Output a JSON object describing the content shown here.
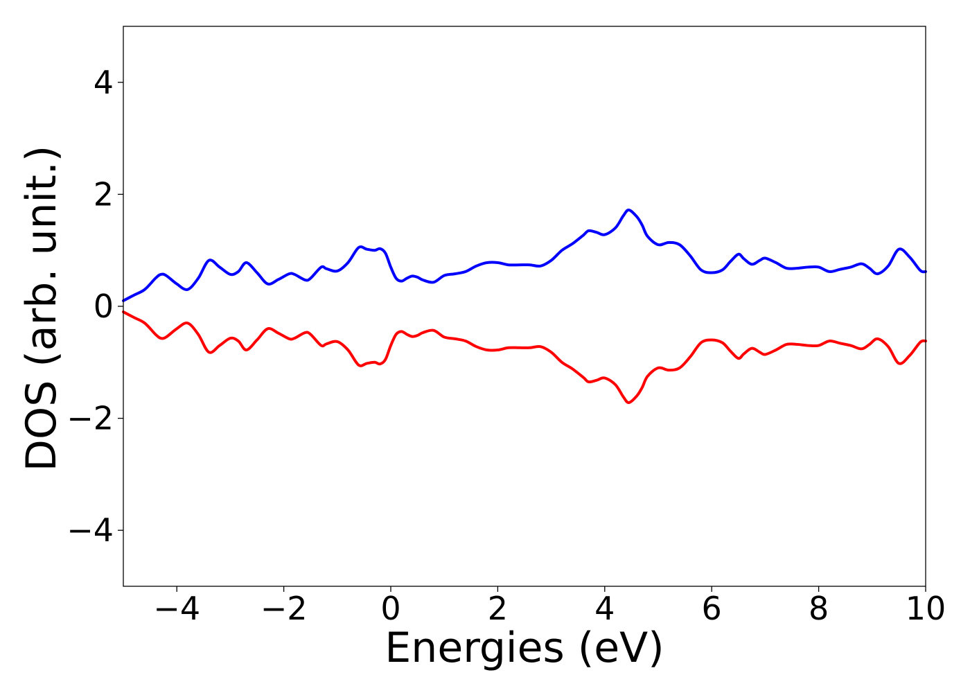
{
  "chart_data": {
    "type": "line",
    "title": "",
    "xlabel": "Energies (eV)",
    "ylabel": "DOS (arb. unit.)",
    "xlim": [
      -5,
      10
    ],
    "ylim": [
      -5,
      5
    ],
    "grid": false,
    "x_ticks": [
      -4,
      -2,
      0,
      2,
      4,
      6,
      8,
      10
    ],
    "x_tick_labels": [
      "−4",
      "−2",
      "0",
      "2",
      "4",
      "6",
      "8",
      "10"
    ],
    "y_ticks": [
      -4,
      -2,
      0,
      2,
      4
    ],
    "y_tick_labels": [
      "−4",
      "−2",
      "0",
      "2",
      "4"
    ],
    "x": [
      -5.0,
      -4.8,
      -4.6,
      -4.4,
      -4.3,
      -4.2,
      -4.0,
      -3.8,
      -3.6,
      -3.4,
      -3.2,
      -3.0,
      -2.85,
      -2.7,
      -2.5,
      -2.3,
      -2.1,
      -1.9,
      -1.8,
      -1.6,
      -1.5,
      -1.3,
      -1.2,
      -1.0,
      -0.8,
      -0.6,
      -0.45,
      -0.3,
      -0.2,
      -0.1,
      0.0,
      0.1,
      0.2,
      0.3,
      0.4,
      0.5,
      0.6,
      0.8,
      1.0,
      1.2,
      1.4,
      1.6,
      1.8,
      2.0,
      2.2,
      2.4,
      2.6,
      2.8,
      3.0,
      3.2,
      3.4,
      3.6,
      3.7,
      3.85,
      4.0,
      4.2,
      4.35,
      4.45,
      4.6,
      4.7,
      4.8,
      5.0,
      5.2,
      5.4,
      5.6,
      5.8,
      6.0,
      6.2,
      6.35,
      6.5,
      6.6,
      6.75,
      6.9,
      7.0,
      7.2,
      7.4,
      7.6,
      7.8,
      8.0,
      8.2,
      8.4,
      8.6,
      8.8,
      8.95,
      9.1,
      9.3,
      9.5,
      9.7,
      9.9,
      10.0
    ],
    "series": [
      {
        "color": "#0000ff",
        "values": [
          0.1,
          0.2,
          0.3,
          0.5,
          0.57,
          0.55,
          0.4,
          0.3,
          0.5,
          0.82,
          0.7,
          0.57,
          0.62,
          0.78,
          0.6,
          0.4,
          0.48,
          0.58,
          0.57,
          0.47,
          0.5,
          0.7,
          0.67,
          0.63,
          0.78,
          1.05,
          1.02,
          1.0,
          1.03,
          0.95,
          0.7,
          0.5,
          0.45,
          0.5,
          0.54,
          0.52,
          0.47,
          0.43,
          0.55,
          0.58,
          0.62,
          0.72,
          0.78,
          0.78,
          0.74,
          0.74,
          0.74,
          0.72,
          0.82,
          1.0,
          1.12,
          1.27,
          1.35,
          1.32,
          1.28,
          1.4,
          1.62,
          1.72,
          1.6,
          1.45,
          1.25,
          1.1,
          1.14,
          1.1,
          0.9,
          0.65,
          0.6,
          0.65,
          0.8,
          0.93,
          0.85,
          0.75,
          0.82,
          0.86,
          0.78,
          0.68,
          0.68,
          0.7,
          0.7,
          0.62,
          0.66,
          0.7,
          0.76,
          0.68,
          0.58,
          0.72,
          1.02,
          0.88,
          0.64,
          0.62
        ]
      },
      {
        "color": "#ff0000",
        "values": [
          -0.1,
          -0.2,
          -0.3,
          -0.5,
          -0.57,
          -0.55,
          -0.4,
          -0.3,
          -0.5,
          -0.82,
          -0.7,
          -0.57,
          -0.62,
          -0.78,
          -0.6,
          -0.4,
          -0.48,
          -0.58,
          -0.57,
          -0.47,
          -0.5,
          -0.7,
          -0.67,
          -0.63,
          -0.78,
          -1.05,
          -1.02,
          -1.0,
          -1.03,
          -0.95,
          -0.7,
          -0.5,
          -0.45,
          -0.5,
          -0.54,
          -0.52,
          -0.47,
          -0.43,
          -0.55,
          -0.58,
          -0.62,
          -0.72,
          -0.78,
          -0.78,
          -0.74,
          -0.74,
          -0.74,
          -0.72,
          -0.82,
          -1.0,
          -1.12,
          -1.27,
          -1.35,
          -1.32,
          -1.28,
          -1.4,
          -1.62,
          -1.72,
          -1.6,
          -1.45,
          -1.25,
          -1.1,
          -1.14,
          -1.1,
          -0.9,
          -0.65,
          -0.6,
          -0.65,
          -0.8,
          -0.93,
          -0.85,
          -0.75,
          -0.82,
          -0.86,
          -0.78,
          -0.68,
          -0.68,
          -0.7,
          -0.7,
          -0.62,
          -0.66,
          -0.7,
          -0.76,
          -0.68,
          -0.58,
          -0.72,
          -1.02,
          -0.88,
          -0.64,
          -0.62
        ]
      }
    ]
  }
}
